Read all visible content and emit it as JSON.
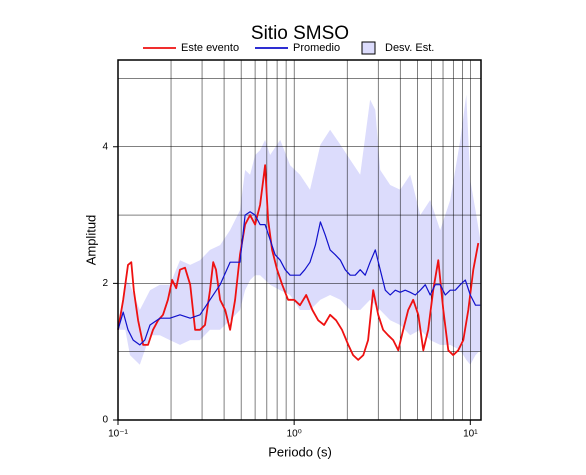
{
  "chart_data": {
    "type": "line",
    "title": "Sitio SMSO",
    "x_label": "Periodo (s)",
    "y_label": "Amplitud",
    "log_x": true,
    "grid": true,
    "xlim": [
      0.1,
      11.5
    ],
    "ylim": [
      0,
      5.27
    ],
    "xticks": [
      {
        "value": 0.1,
        "label": "10⁻¹"
      },
      {
        "value": 1,
        "label": "10⁰"
      },
      {
        "value": 10,
        "label": "10¹"
      }
    ],
    "yticks": [
      0,
      2,
      4
    ],
    "ygrid": [
      1,
      2,
      3,
      4,
      5
    ],
    "series": [
      {
        "name": "Este evento",
        "color": "#ee1111",
        "x": [
          0.1,
          0.107,
          0.114,
          0.119,
          0.123,
          0.13,
          0.139,
          0.148,
          0.158,
          0.169,
          0.18,
          0.192,
          0.203,
          0.214,
          0.225,
          0.24,
          0.257,
          0.274,
          0.292,
          0.312,
          0.333,
          0.347,
          0.36,
          0.38,
          0.406,
          0.433,
          0.462,
          0.493,
          0.527,
          0.562,
          0.6,
          0.641,
          0.684,
          0.711,
          0.75,
          0.8,
          0.855,
          0.924,
          1.0,
          1.08,
          1.17,
          1.27,
          1.37,
          1.48,
          1.6,
          1.73,
          1.87,
          2.03,
          2.16,
          2.31,
          2.47,
          2.63,
          2.81,
          3.0,
          3.2,
          3.42,
          3.65,
          3.9,
          4.16,
          4.44,
          4.74,
          5.07,
          5.41,
          5.77,
          6.16,
          6.58,
          7.03,
          7.5,
          8.0,
          8.54,
          9.12,
          9.74,
          10.4,
          11.1
        ],
        "values": [
          1.32,
          1.76,
          2.27,
          2.31,
          1.9,
          1.46,
          1.1,
          1.1,
          1.32,
          1.46,
          1.54,
          1.76,
          2.05,
          1.93,
          2.2,
          2.23,
          1.98,
          1.32,
          1.32,
          1.39,
          1.9,
          2.31,
          2.2,
          1.76,
          1.61,
          1.32,
          1.76,
          2.42,
          2.86,
          3.0,
          2.86,
          3.15,
          3.73,
          2.93,
          2.49,
          2.2,
          1.98,
          1.76,
          1.76,
          1.68,
          1.83,
          1.61,
          1.46,
          1.39,
          1.54,
          1.46,
          1.32,
          1.1,
          0.95,
          0.88,
          0.95,
          1.17,
          1.9,
          1.54,
          1.32,
          1.24,
          1.17,
          1.02,
          1.32,
          1.61,
          1.76,
          1.54,
          1.02,
          1.32,
          1.9,
          2.34,
          1.61,
          1.02,
          0.95,
          1.02,
          1.17,
          1.61,
          2.2,
          2.59
        ]
      },
      {
        "name": "Promedio",
        "color": "#1111cc",
        "x": [
          0.1,
          0.107,
          0.114,
          0.122,
          0.133,
          0.142,
          0.152,
          0.173,
          0.197,
          0.225,
          0.257,
          0.292,
          0.333,
          0.38,
          0.433,
          0.493,
          0.527,
          0.562,
          0.6,
          0.641,
          0.684,
          0.73,
          0.78,
          0.833,
          0.889,
          0.949,
          1.01,
          1.08,
          1.15,
          1.23,
          1.32,
          1.41,
          1.5,
          1.6,
          1.71,
          1.83,
          1.95,
          2.08,
          2.22,
          2.37,
          2.53,
          2.7,
          2.89,
          3.08,
          3.29,
          3.51,
          3.75,
          4.0,
          4.27,
          4.56,
          4.87,
          5.2,
          5.55,
          5.92,
          6.32,
          6.75,
          7.21,
          7.69,
          8.22,
          8.77,
          9.37,
          10.0,
          10.7,
          11.4
        ],
        "values": [
          1.32,
          1.58,
          1.32,
          1.17,
          1.1,
          1.17,
          1.39,
          1.49,
          1.49,
          1.54,
          1.49,
          1.54,
          1.76,
          1.98,
          2.31,
          2.31,
          3.0,
          3.05,
          3.0,
          2.86,
          2.86,
          2.64,
          2.42,
          2.34,
          2.2,
          2.12,
          2.12,
          2.12,
          2.2,
          2.31,
          2.56,
          2.9,
          2.71,
          2.49,
          2.42,
          2.34,
          2.2,
          2.12,
          2.12,
          2.2,
          2.12,
          2.31,
          2.49,
          2.2,
          1.9,
          1.83,
          1.9,
          1.87,
          1.9,
          1.87,
          1.83,
          1.9,
          1.98,
          1.83,
          1.98,
          1.98,
          1.83,
          1.9,
          1.9,
          1.98,
          2.05,
          1.83,
          1.68,
          1.68
        ]
      }
    ],
    "band": {
      "name": "Desv. Est.",
      "color": "#dcdcfc",
      "edge": "#000000",
      "x": [
        0.1,
        0.11,
        0.117,
        0.133,
        0.152,
        0.173,
        0.197,
        0.225,
        0.257,
        0.292,
        0.333,
        0.38,
        0.433,
        0.493,
        0.527,
        0.562,
        0.6,
        0.641,
        0.684,
        0.73,
        0.833,
        0.949,
        1.08,
        1.23,
        1.41,
        1.6,
        1.83,
        2.08,
        2.37,
        2.7,
        2.89,
        3.08,
        3.51,
        4.0,
        4.56,
        5.2,
        5.92,
        6.75,
        7.69,
        8.77,
        9.49,
        10.0,
        10.7,
        11.4
      ],
      "upper": [
        1.32,
        2.05,
        1.98,
        1.61,
        1.9,
        1.98,
        1.98,
        2.34,
        2.27,
        2.34,
        2.49,
        2.56,
        2.78,
        3.07,
        3.66,
        3.59,
        3.88,
        3.95,
        4.1,
        3.88,
        4.1,
        3.73,
        3.59,
        3.37,
        4.03,
        4.25,
        4.03,
        3.81,
        3.59,
        4.69,
        4.54,
        3.66,
        3.44,
        3.37,
        3.59,
        3.0,
        3.22,
        2.78,
        3.22,
        4.1,
        4.76,
        3.51,
        3.07,
        2.64
      ],
      "lower": [
        1.32,
        1.32,
        0.95,
        0.81,
        1.24,
        1.24,
        1.17,
        1.1,
        1.17,
        1.17,
        1.32,
        1.32,
        1.46,
        1.61,
        1.9,
        2.05,
        2.12,
        2.12,
        2.05,
        1.98,
        1.9,
        1.83,
        1.61,
        1.61,
        1.76,
        1.83,
        1.76,
        1.61,
        1.61,
        1.76,
        1.68,
        1.61,
        1.46,
        1.39,
        1.24,
        1.32,
        1.17,
        1.1,
        1.1,
        1.02,
        0.88,
        0.81,
        0.95,
        1.02
      ]
    }
  }
}
